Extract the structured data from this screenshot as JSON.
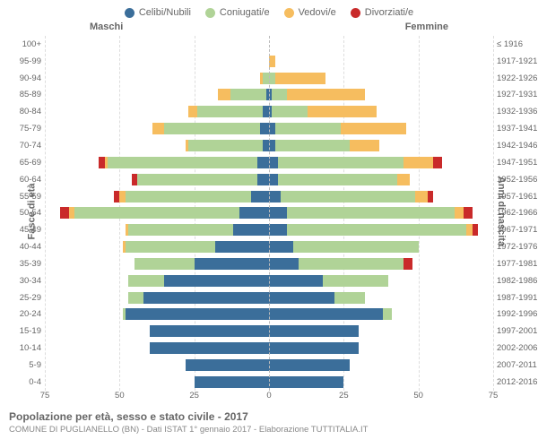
{
  "type": "population-pyramid",
  "title": "Popolazione per età, sesso e stato civile - 2017",
  "subtitle": "COMUNE DI PUGLIANELLO (BN) - Dati ISTAT 1° gennaio 2017 - Elaborazione TUTTITALIA.IT",
  "left_header": "Maschi",
  "right_header": "Femmine",
  "ylabel_left": "Fasce di età",
  "ylabel_right": "Anni di nascita",
  "legend": [
    {
      "label": "Celibi/Nubili",
      "color": "#3b6e9a"
    },
    {
      "label": "Coniugati/e",
      "color": "#b0d397"
    },
    {
      "label": "Vedovi/e",
      "color": "#f6bd5f"
    },
    {
      "label": "Divorziati/e",
      "color": "#c92a2a"
    }
  ],
  "colors": {
    "celibi": "#3b6e9a",
    "coniugati": "#b0d397",
    "vedovi": "#f6bd5f",
    "divorziati": "#c92a2a",
    "grid": "#dddddd",
    "center": "#bbbbbb",
    "bg": "#ffffff",
    "text": "#666666"
  },
  "xlim": [
    0,
    75
  ],
  "xticks_left": [
    75,
    50,
    25,
    0
  ],
  "xticks_right": [
    0,
    25,
    50,
    75
  ],
  "bar_gap_ratio": 0.25,
  "label_fontsize": 9.5,
  "axis_fontsize": 11,
  "rows": [
    {
      "age": "100+",
      "birth": "≤ 1916",
      "m": {
        "cel": 0,
        "con": 0,
        "ved": 0,
        "div": 0
      },
      "f": {
        "cel": 0,
        "con": 0,
        "ved": 0,
        "div": 0
      }
    },
    {
      "age": "95-99",
      "birth": "1917-1921",
      "m": {
        "cel": 0,
        "con": 0,
        "ved": 0,
        "div": 0
      },
      "f": {
        "cel": 0,
        "con": 0,
        "ved": 2,
        "div": 0
      }
    },
    {
      "age": "90-94",
      "birth": "1922-1926",
      "m": {
        "cel": 0,
        "con": 2,
        "ved": 1,
        "div": 0
      },
      "f": {
        "cel": 0,
        "con": 2,
        "ved": 17,
        "div": 0
      }
    },
    {
      "age": "85-89",
      "birth": "1927-1931",
      "m": {
        "cel": 1,
        "con": 12,
        "ved": 4,
        "div": 0
      },
      "f": {
        "cel": 1,
        "con": 5,
        "ved": 26,
        "div": 0
      }
    },
    {
      "age": "80-84",
      "birth": "1932-1936",
      "m": {
        "cel": 2,
        "con": 22,
        "ved": 3,
        "div": 0
      },
      "f": {
        "cel": 1,
        "con": 12,
        "ved": 23,
        "div": 0
      }
    },
    {
      "age": "75-79",
      "birth": "1937-1941",
      "m": {
        "cel": 3,
        "con": 32,
        "ved": 4,
        "div": 0
      },
      "f": {
        "cel": 2,
        "con": 22,
        "ved": 22,
        "div": 0
      }
    },
    {
      "age": "70-74",
      "birth": "1942-1946",
      "m": {
        "cel": 2,
        "con": 25,
        "ved": 1,
        "div": 0
      },
      "f": {
        "cel": 2,
        "con": 25,
        "ved": 10,
        "div": 0
      }
    },
    {
      "age": "65-69",
      "birth": "1947-1951",
      "m": {
        "cel": 4,
        "con": 50,
        "ved": 1,
        "div": 2
      },
      "f": {
        "cel": 3,
        "con": 42,
        "ved": 10,
        "div": 3
      }
    },
    {
      "age": "60-64",
      "birth": "1952-1956",
      "m": {
        "cel": 4,
        "con": 40,
        "ved": 0,
        "div": 2
      },
      "f": {
        "cel": 3,
        "con": 40,
        "ved": 4,
        "div": 0
      }
    },
    {
      "age": "55-59",
      "birth": "1957-1961",
      "m": {
        "cel": 6,
        "con": 42,
        "ved": 2,
        "div": 2
      },
      "f": {
        "cel": 4,
        "con": 45,
        "ved": 4,
        "div": 2
      }
    },
    {
      "age": "50-54",
      "birth": "1962-1966",
      "m": {
        "cel": 10,
        "con": 55,
        "ved": 2,
        "div": 3
      },
      "f": {
        "cel": 6,
        "con": 56,
        "ved": 3,
        "div": 3
      }
    },
    {
      "age": "45-49",
      "birth": "1967-1971",
      "m": {
        "cel": 12,
        "con": 35,
        "ved": 1,
        "div": 0
      },
      "f": {
        "cel": 6,
        "con": 60,
        "ved": 2,
        "div": 2
      }
    },
    {
      "age": "40-44",
      "birth": "1972-1976",
      "m": {
        "cel": 18,
        "con": 30,
        "ved": 1,
        "div": 0
      },
      "f": {
        "cel": 8,
        "con": 42,
        "ved": 0,
        "div": 0
      }
    },
    {
      "age": "35-39",
      "birth": "1977-1981",
      "m": {
        "cel": 25,
        "con": 20,
        "ved": 0,
        "div": 0
      },
      "f": {
        "cel": 10,
        "con": 35,
        "ved": 0,
        "div": 3
      }
    },
    {
      "age": "30-34",
      "birth": "1982-1986",
      "m": {
        "cel": 35,
        "con": 12,
        "ved": 0,
        "div": 0
      },
      "f": {
        "cel": 18,
        "con": 22,
        "ved": 0,
        "div": 0
      }
    },
    {
      "age": "25-29",
      "birth": "1987-1991",
      "m": {
        "cel": 42,
        "con": 5,
        "ved": 0,
        "div": 0
      },
      "f": {
        "cel": 22,
        "con": 10,
        "ved": 0,
        "div": 0
      }
    },
    {
      "age": "20-24",
      "birth": "1992-1996",
      "m": {
        "cel": 48,
        "con": 1,
        "ved": 0,
        "div": 0
      },
      "f": {
        "cel": 38,
        "con": 3,
        "ved": 0,
        "div": 0
      }
    },
    {
      "age": "15-19",
      "birth": "1997-2001",
      "m": {
        "cel": 40,
        "con": 0,
        "ved": 0,
        "div": 0
      },
      "f": {
        "cel": 30,
        "con": 0,
        "ved": 0,
        "div": 0
      }
    },
    {
      "age": "10-14",
      "birth": "2002-2006",
      "m": {
        "cel": 40,
        "con": 0,
        "ved": 0,
        "div": 0
      },
      "f": {
        "cel": 30,
        "con": 0,
        "ved": 0,
        "div": 0
      }
    },
    {
      "age": "5-9",
      "birth": "2007-2011",
      "m": {
        "cel": 28,
        "con": 0,
        "ved": 0,
        "div": 0
      },
      "f": {
        "cel": 27,
        "con": 0,
        "ved": 0,
        "div": 0
      }
    },
    {
      "age": "0-4",
      "birth": "2012-2016",
      "m": {
        "cel": 25,
        "con": 0,
        "ved": 0,
        "div": 0
      },
      "f": {
        "cel": 25,
        "con": 0,
        "ved": 0,
        "div": 0
      }
    }
  ]
}
